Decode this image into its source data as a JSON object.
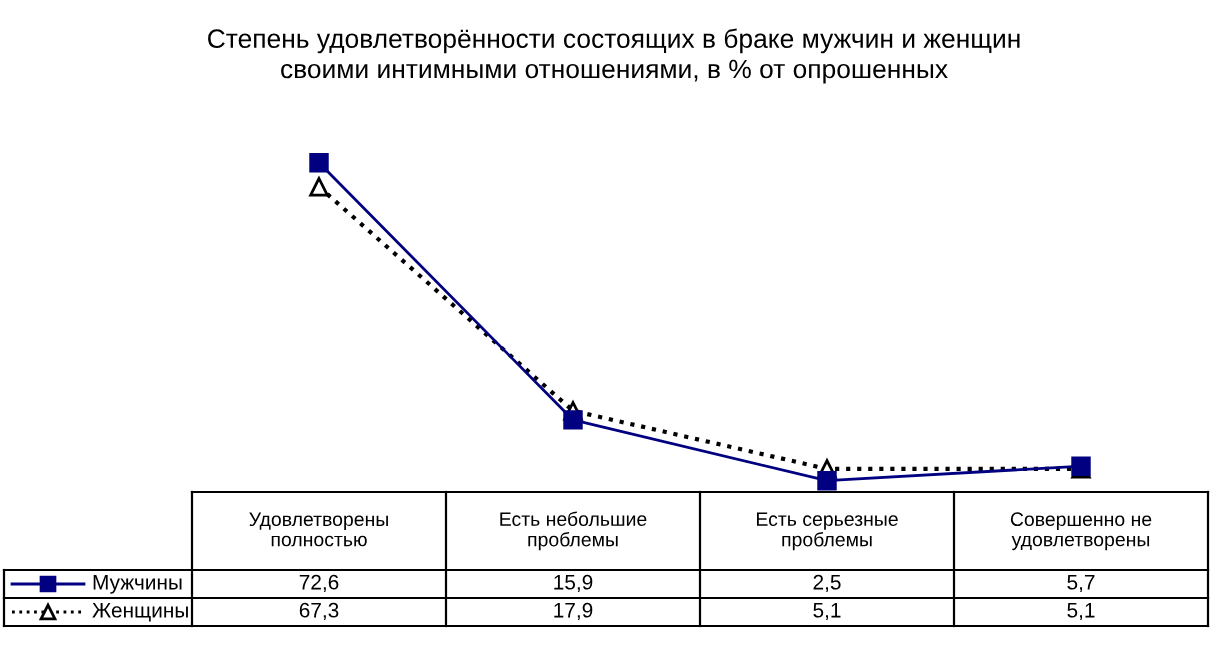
{
  "chart_data": {
    "type": "line",
    "title": "Степень удовлетворённости состоящих в браке мужчин и женщин\nсвоими интимными отношениями, в % от опрошенных",
    "categories": [
      "Удовлетворены\nполностью",
      "Есть небольшие\nпроблемы",
      "Есть серьезные\nпроблемы",
      "Совершенно не\nудовлетворены"
    ],
    "series": [
      {
        "name": "Мужчины",
        "color": "#000080",
        "values": [
          72.6,
          15.9,
          2.5,
          5.7
        ],
        "value_labels": [
          "72,6",
          "15,9",
          "2,5",
          "5,7"
        ],
        "marker": "square",
        "line_style": "solid"
      },
      {
        "name": "Женщины",
        "color": "#000000",
        "values": [
          67.3,
          17.9,
          5.1,
          5.1
        ],
        "value_labels": [
          "67,3",
          "17,9",
          "5,1",
          "5,1"
        ],
        "marker": "triangle",
        "line_style": "dotted"
      }
    ],
    "legend": "bottom left"
  }
}
